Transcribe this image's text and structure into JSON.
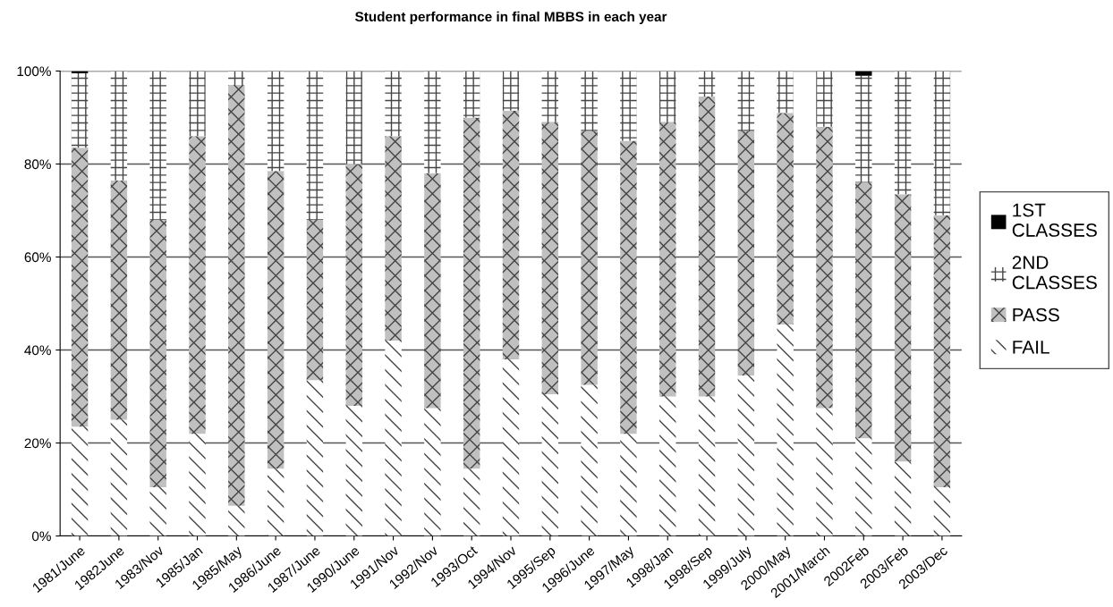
{
  "chart_data": {
    "type": "bar",
    "stacked": true,
    "title": "Student performance in final MBBS in each year",
    "categories": [
      "1981/June",
      "1982June",
      "1983/Nov",
      "1985/Jan",
      "1985/May",
      "1986/June",
      "1987/June",
      "1990/June",
      "1991/Nov",
      "1992/Nov",
      "1993/Oct",
      "1994/Nov",
      "1995/Sep",
      "1996/June",
      "1997/May",
      "1998/Jan",
      "1998/Sep",
      "1999/July",
      "2000/May",
      "2001/March",
      "2002Feb",
      "2003/Feb",
      "2003/Dec"
    ],
    "series": [
      {
        "name": "FAIL",
        "color": "#ffffff",
        "values": [
          23.5,
          25,
          10.5,
          22,
          6.5,
          14.5,
          33.5,
          28,
          42,
          27.5,
          14.5,
          38,
          30.5,
          32.5,
          22,
          30,
          30,
          34.5,
          45.5,
          27.5,
          21,
          16,
          10.5
        ]
      },
      {
        "name": "PASS",
        "color": "#c0c0c0",
        "values": [
          60,
          51.5,
          57.5,
          64,
          90.5,
          64,
          34.5,
          52,
          44,
          50.5,
          75.5,
          53.5,
          58.5,
          54.5,
          63,
          59,
          64.5,
          52.5,
          45.5,
          60.5,
          55,
          57.5,
          58.5
        ]
      },
      {
        "name": "2ND\nCLASSES",
        "color": "#ffffff",
        "values": [
          16,
          23.5,
          32,
          14,
          3,
          21.5,
          32,
          20,
          14,
          22,
          10,
          8.5,
          11,
          13,
          15,
          11,
          5.5,
          13,
          9,
          12,
          23,
          26.5,
          31
        ]
      },
      {
        "name": "1ST\nCLASSES",
        "color": "#000000",
        "values": [
          0.5,
          0,
          0,
          0,
          0,
          0,
          0,
          0,
          0,
          0,
          0,
          0,
          0,
          0,
          0,
          0,
          0,
          0,
          0,
          0,
          1,
          0,
          0
        ]
      }
    ],
    "ylim": [
      0,
      100
    ],
    "yticks": [
      {
        "value": 0,
        "label": "0%"
      },
      {
        "value": 20,
        "label": "20%"
      },
      {
        "value": 40,
        "label": "40%"
      },
      {
        "value": 60,
        "label": "60%"
      },
      {
        "value": 80,
        "label": "80%"
      },
      {
        "value": 100,
        "label": "100%"
      }
    ],
    "grid": "y",
    "legend": "right"
  }
}
